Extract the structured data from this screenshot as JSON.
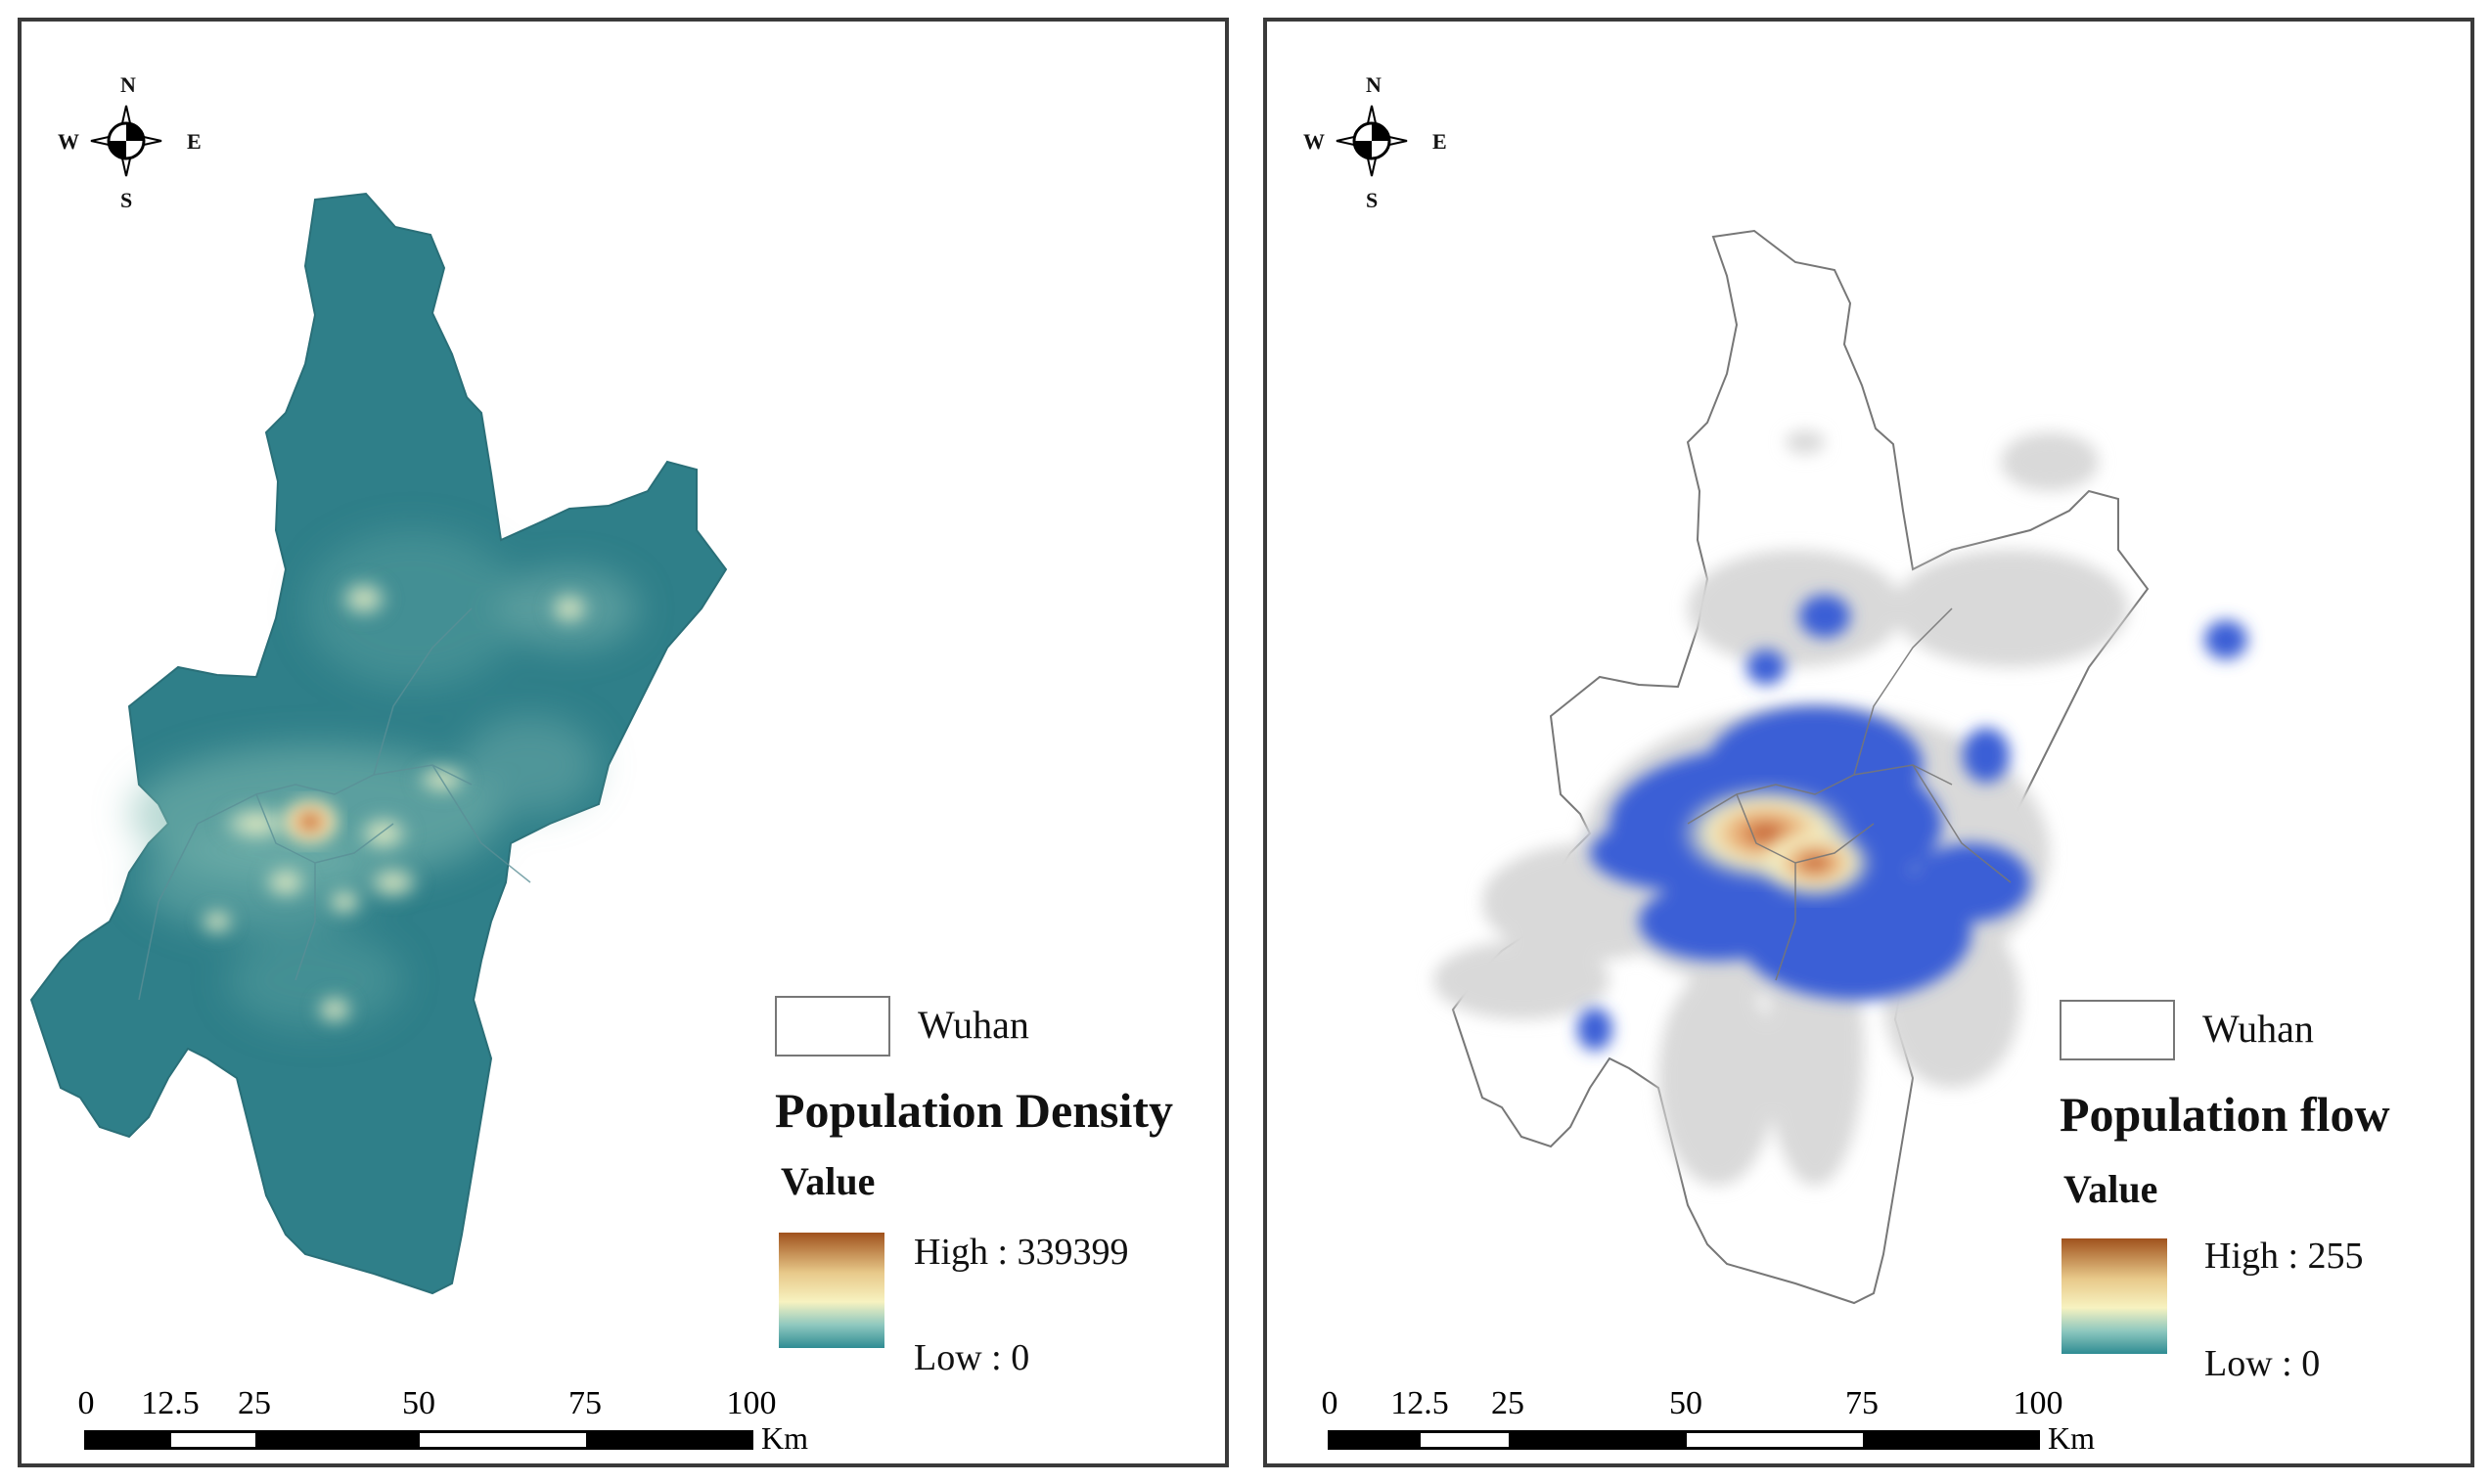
{
  "compass": {
    "north": "N",
    "south": "S",
    "east": "E",
    "west": "W"
  },
  "colors": {
    "density_fill": "#2f7f89",
    "flow_blue": "#3a5fd6",
    "flow_gray": "#d9d9d9",
    "ramp_high": "#a0521d",
    "ramp_mid": "#f7f2c0",
    "ramp_low": "#2f8c93",
    "outline": "#777777"
  },
  "left_map": {
    "legend_name": "Wuhan",
    "title": "Population Density",
    "value_label": "Value",
    "high_label": "High : 339399",
    "low_label": "Low : 0",
    "scale_ticks": [
      "0",
      "12.5",
      "25",
      "50",
      "75",
      "100"
    ],
    "scale_unit": "Km"
  },
  "right_map": {
    "legend_name": "Wuhan",
    "title": "Population flow",
    "value_label": "Value",
    "high_label": "High : 255",
    "low_label": "Low : 0",
    "scale_ticks": [
      "0",
      "12.5",
      "25",
      "50",
      "75",
      "100"
    ],
    "scale_unit": "Km"
  }
}
